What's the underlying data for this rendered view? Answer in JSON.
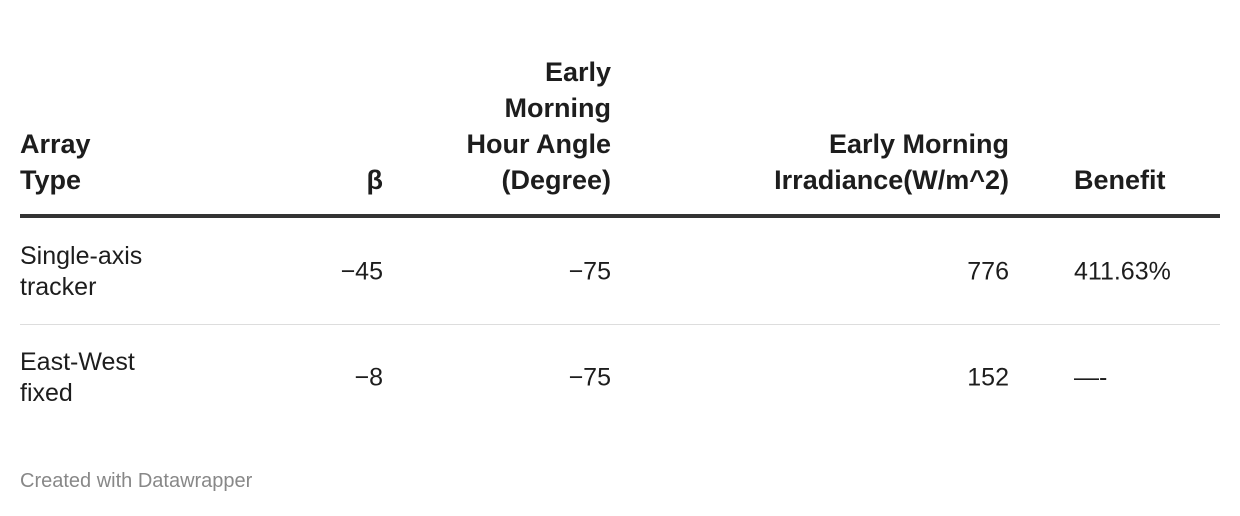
{
  "table": {
    "header": [
      "Array Type",
      "β",
      "Early Morning Hour Angle (Degree)",
      "Early Morning Irradiance(W/m^2)",
      "Benefit"
    ],
    "rows": [
      [
        "Single-axis tracker",
        "−45",
        "−75",
        "776",
        "411.63%"
      ],
      [
        "East-West fixed",
        "−8",
        "−75",
        "152",
        "—-"
      ]
    ]
  },
  "footer": {
    "credit": "Created with Datawrapper"
  }
}
